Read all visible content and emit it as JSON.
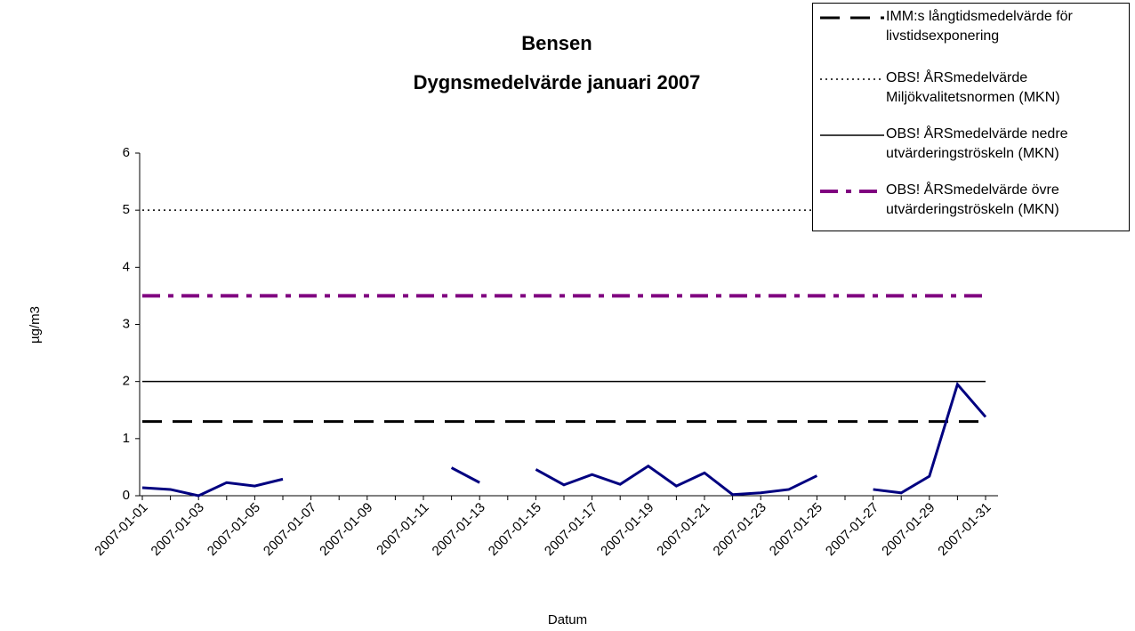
{
  "chart_data": {
    "type": "line",
    "title": "Bensen",
    "subtitle": "Dygnsmedelvärde januari 2007",
    "x_label": "Datum",
    "y_label": "µg/m3",
    "categories": [
      "2007-01-01",
      null,
      "2007-01-03",
      null,
      "2007-01-05",
      null,
      "2007-01-07",
      null,
      "2007-01-09",
      null,
      "2007-01-11",
      null,
      "2007-01-13",
      null,
      "2007-01-15",
      null,
      "2007-01-17",
      null,
      "2007-01-19",
      null,
      "2007-01-21",
      null,
      "2007-01-23",
      null,
      "2007-01-25",
      null,
      "2007-01-27",
      null,
      "2007-01-29",
      null,
      "2007-01-31"
    ],
    "ylim": [
      0,
      6
    ],
    "yticks": [
      0,
      1,
      2,
      3,
      4,
      5,
      6
    ],
    "series": [
      {
        "name": "IMM:s långtidsmedelvärde för livstidsexponering",
        "color": "#000000",
        "dash": "dashed",
        "values": [
          1.3,
          1.3,
          1.3,
          1.3,
          1.3,
          1.3,
          1.3,
          1.3,
          1.3,
          1.3,
          1.3,
          1.3,
          1.3,
          1.3,
          1.3,
          1.3,
          1.3,
          1.3,
          1.3,
          1.3,
          1.3,
          1.3,
          1.3,
          1.3,
          1.3,
          1.3,
          1.3,
          1.3,
          1.3,
          1.3,
          1.3
        ]
      },
      {
        "name": "OBS! ÅRSmedelvärde Miljökvalitetsnormen (MKN)",
        "color": "#000000",
        "dash": "dotted",
        "values": [
          5,
          5,
          5,
          5,
          5,
          5,
          5,
          5,
          5,
          5,
          5,
          5,
          5,
          5,
          5,
          5,
          5,
          5,
          5,
          5,
          5,
          5,
          5,
          5,
          5,
          5,
          5,
          5,
          5,
          5,
          5
        ]
      },
      {
        "name": "OBS! ÅRSmedelvärde nedre utvärderingströskeln (MKN)",
        "color": "#000000",
        "dash": "solid",
        "values": [
          2,
          2,
          2,
          2,
          2,
          2,
          2,
          2,
          2,
          2,
          2,
          2,
          2,
          2,
          2,
          2,
          2,
          2,
          2,
          2,
          2,
          2,
          2,
          2,
          2,
          2,
          2,
          2,
          2,
          2,
          2
        ]
      },
      {
        "name": "OBS! ÅRSmedelvärde övre utvärderingströskeln (MKN)",
        "color": "#800080",
        "dash": "dashdot",
        "values": [
          3.5,
          3.5,
          3.5,
          3.5,
          3.5,
          3.5,
          3.5,
          3.5,
          3.5,
          3.5,
          3.5,
          3.5,
          3.5,
          3.5,
          3.5,
          3.5,
          3.5,
          3.5,
          3.5,
          3.5,
          3.5,
          3.5,
          3.5,
          3.5,
          3.5,
          3.5,
          3.5,
          3.5,
          3.5,
          3.5,
          3.5
        ]
      },
      {
        "color": "#000080",
        "dash": "solid",
        "values": [
          0.14,
          0.11,
          0.0,
          0.23,
          0.17,
          0.29,
          null,
          null,
          null,
          null,
          null,
          0.49,
          0.23,
          null,
          0.46,
          0.19,
          0.37,
          0.2,
          0.52,
          0.17,
          0.4,
          0.02,
          0.05,
          0.11,
          0.35,
          null,
          0.11,
          0.05,
          0.34,
          1.95,
          1.38
        ]
      }
    ]
  }
}
